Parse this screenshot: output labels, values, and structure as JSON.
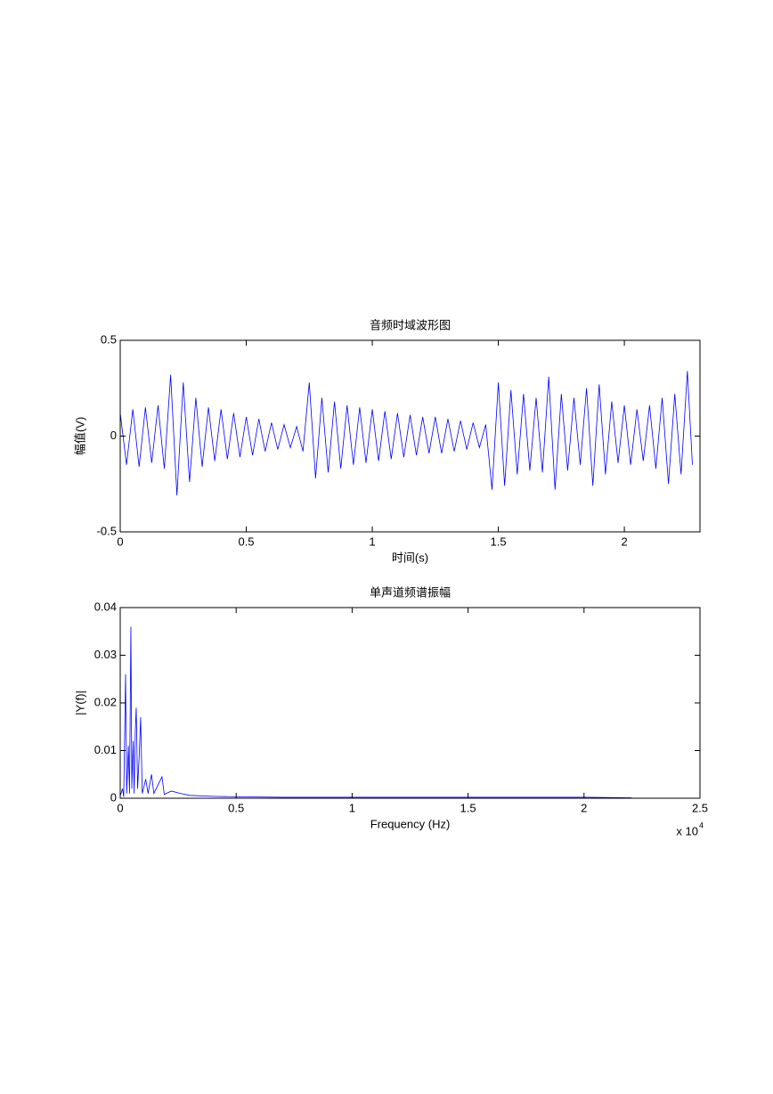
{
  "chart_data": [
    {
      "type": "line",
      "title": "音频时域波形图",
      "x_label": "时间(s)",
      "y_label": "幅值(V)",
      "color": "#0000ff",
      "xlim": [
        0,
        2.3
      ],
      "ylim": [
        -0.5,
        0.5
      ],
      "xticks": [
        0,
        0.5,
        1,
        1.5,
        2
      ],
      "yticks": [
        -0.5,
        0,
        0.5
      ],
      "x": [
        0,
        0.025,
        0.05,
        0.075,
        0.1,
        0.125,
        0.15,
        0.175,
        0.2,
        0.225,
        0.25,
        0.275,
        0.3,
        0.325,
        0.35,
        0.375,
        0.4,
        0.425,
        0.45,
        0.475,
        0.5,
        0.525,
        0.55,
        0.575,
        0.6,
        0.625,
        0.65,
        0.675,
        0.7,
        0.725,
        0.75,
        0.775,
        0.8,
        0.825,
        0.85,
        0.875,
        0.9,
        0.925,
        0.95,
        0.975,
        1,
        1.025,
        1.05,
        1.075,
        1.1,
        1.125,
        1.15,
        1.175,
        1.2,
        1.225,
        1.25,
        1.275,
        1.3,
        1.325,
        1.35,
        1.375,
        1.4,
        1.425,
        1.45,
        1.475,
        1.5,
        1.525,
        1.55,
        1.575,
        1.6,
        1.625,
        1.65,
        1.675,
        1.7,
        1.725,
        1.75,
        1.775,
        1.8,
        1.825,
        1.85,
        1.875,
        1.9,
        1.925,
        1.95,
        1.975,
        2,
        2.025,
        2.05,
        2.075,
        2.1,
        2.125,
        2.15,
        2.175,
        2.2,
        2.225,
        2.25,
        2.27
      ],
      "values": [
        0.12,
        -0.15,
        0.14,
        -0.16,
        0.15,
        -0.14,
        0.16,
        -0.17,
        0.32,
        -0.31,
        0.28,
        -0.24,
        0.2,
        -0.16,
        0.15,
        -0.13,
        0.14,
        -0.12,
        0.12,
        -0.11,
        0.1,
        -0.1,
        0.09,
        -0.08,
        0.07,
        -0.07,
        0.06,
        -0.06,
        0.05,
        -0.08,
        0.28,
        -0.22,
        0.2,
        -0.19,
        0.18,
        -0.17,
        0.16,
        -0.15,
        0.15,
        -0.14,
        0.14,
        -0.13,
        0.13,
        -0.12,
        0.12,
        -0.11,
        0.11,
        -0.1,
        0.1,
        -0.09,
        0.1,
        -0.09,
        0.09,
        -0.08,
        0.08,
        -0.07,
        0.07,
        -0.06,
        0.06,
        -0.28,
        0.28,
        -0.26,
        0.24,
        -0.2,
        0.22,
        -0.18,
        0.2,
        -0.19,
        0.31,
        -0.28,
        0.22,
        -0.18,
        0.2,
        -0.15,
        0.25,
        -0.26,
        0.27,
        -0.2,
        0.18,
        -0.14,
        0.16,
        -0.15,
        0.14,
        -0.13,
        0.16,
        -0.17,
        0.2,
        -0.25,
        0.22,
        -0.2,
        0.34,
        -0.15
      ]
    },
    {
      "type": "line",
      "title": "单声道频谱振幅",
      "x_label": "Frequency (Hz)",
      "y_label": "|Y(f)|",
      "color": "#0000ff",
      "x_scale_label": "x 10",
      "x_scale_exponent": 4,
      "xlim": [
        0,
        25000
      ],
      "ylim": [
        0,
        0.04
      ],
      "xticks": [
        0,
        {
          "value": 5000,
          "label": "0.5"
        },
        {
          "value": 10000,
          "label": "1"
        },
        {
          "value": 15000,
          "label": "1.5"
        },
        {
          "value": 20000,
          "label": "2"
        },
        {
          "value": 25000,
          "label": "2.5"
        }
      ],
      "yticks": [
        0,
        0.01,
        0.02,
        0.03,
        0.04
      ],
      "x": [
        0,
        100,
        150,
        230,
        280,
        350,
        400,
        460,
        500,
        560,
        600,
        650,
        690,
        750,
        820,
        880,
        950,
        1100,
        1200,
        1350,
        1450,
        1800,
        1900,
        2200,
        2600,
        3000,
        4000,
        5000,
        7000,
        10000,
        15000,
        20000,
        22050
      ],
      "values": [
        0.0005,
        0.002,
        0.0003,
        0.026,
        0.001,
        0.011,
        0.001,
        0.036,
        0.002,
        0.012,
        0.001,
        0.014,
        0.019,
        0.002,
        0.009,
        0.017,
        0.001,
        0.004,
        0.001,
        0.005,
        0.001,
        0.0045,
        0.0008,
        0.0015,
        0.001,
        0.0006,
        0.0004,
        0.0003,
        0.0002,
        0.0002,
        0.0002,
        0.0002,
        0.0001
      ]
    }
  ]
}
